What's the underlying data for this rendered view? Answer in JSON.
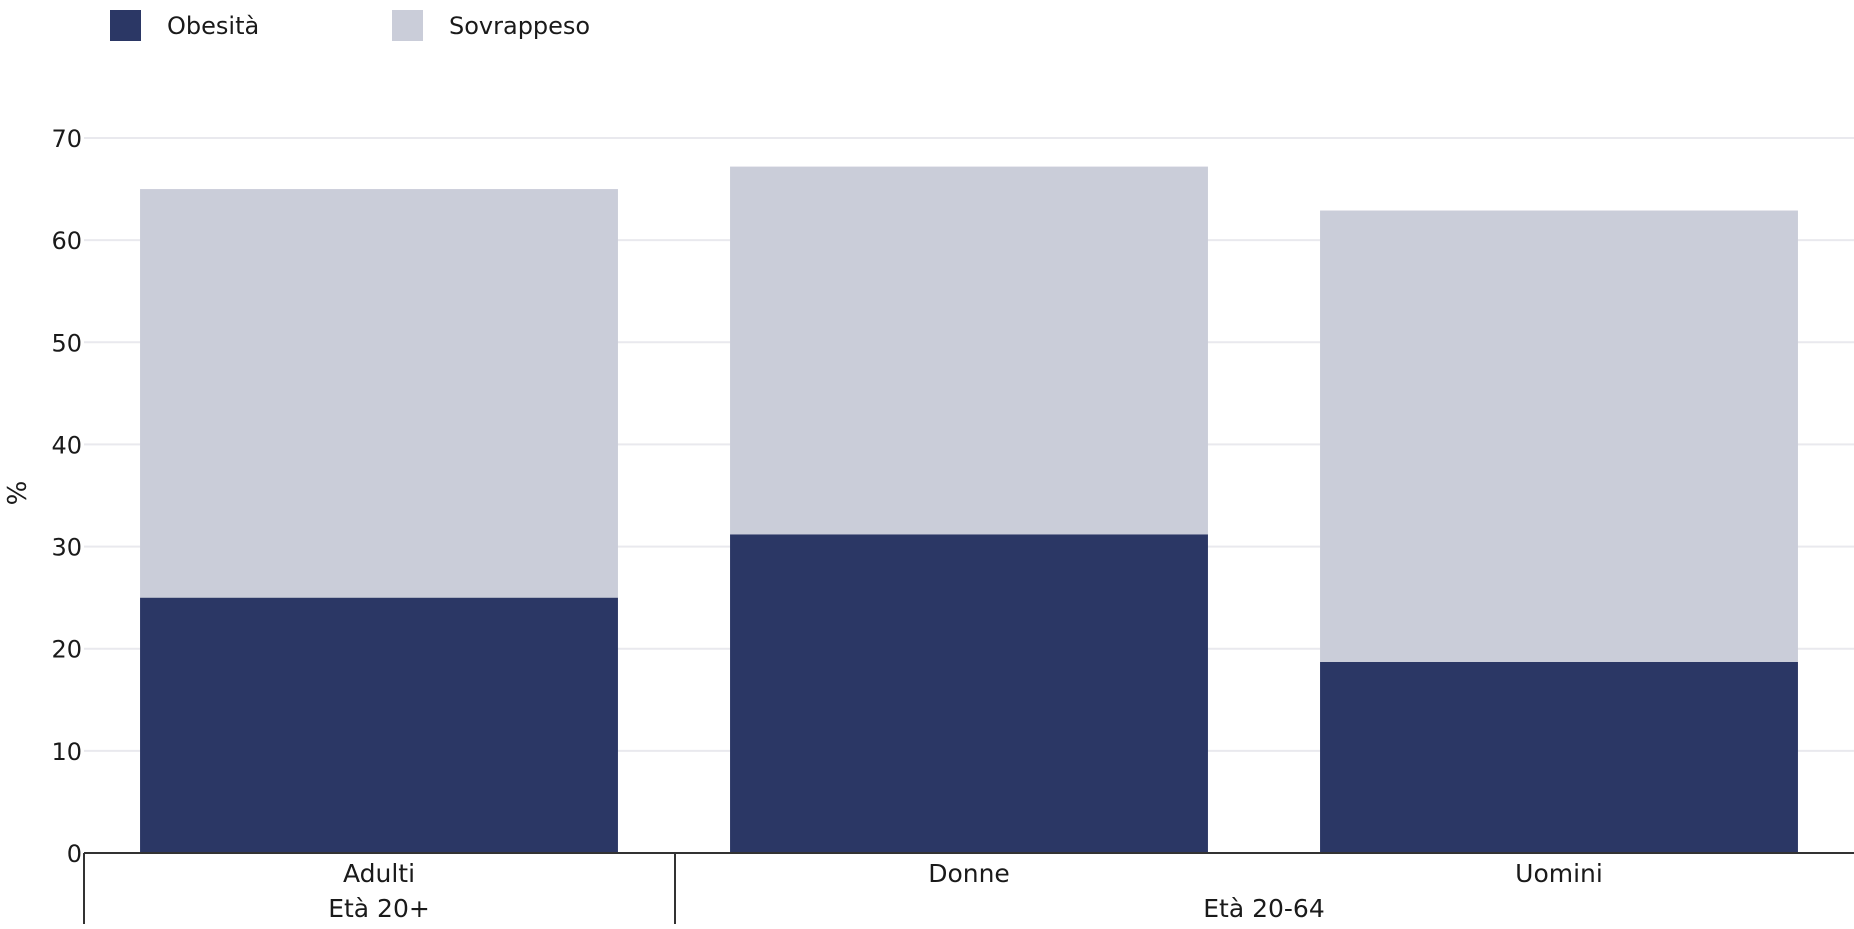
{
  "chart_data": {
    "type": "bar",
    "stacked": true,
    "categories": [
      "Adulti",
      "Donne",
      "Uomini"
    ],
    "groups": [
      {
        "label": "Età 20+",
        "categories": [
          "Adulti"
        ]
      },
      {
        "label": "Età 20-64",
        "categories": [
          "Donne",
          "Uomini"
        ]
      }
    ],
    "series": [
      {
        "name": "Obesità",
        "values": [
          25,
          31.2,
          18.7
        ],
        "color": "#2b3765"
      },
      {
        "name": "Sovrappeso",
        "values": [
          40,
          36,
          44.2
        ],
        "color": "#cacdd9"
      }
    ],
    "ylabel": "%",
    "xlabel": "",
    "ylim": [
      0,
      70
    ],
    "yticks": [
      "0",
      "10",
      "20",
      "30",
      "40",
      "50",
      "60",
      "70"
    ],
    "grid": true,
    "legend": "top-left"
  }
}
